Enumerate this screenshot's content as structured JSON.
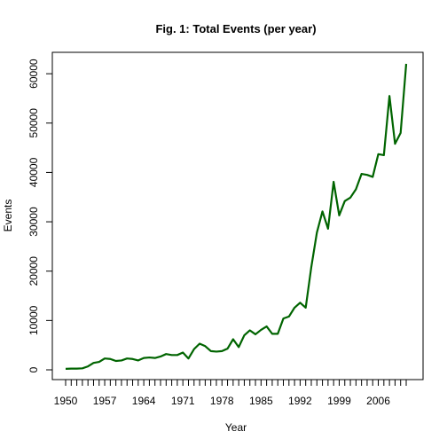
{
  "chart_data": {
    "type": "line",
    "title": "Fig. 1: Total Events (per year)",
    "xlabel": "Year",
    "ylabel": "Events",
    "xlim": [
      1950,
      2011
    ],
    "ylim": [
      0,
      62000
    ],
    "grid": false,
    "x_ticks": [
      1950,
      1951,
      1952,
      1953,
      1954,
      1955,
      1956,
      1957,
      1958,
      1959,
      1960,
      1961,
      1962,
      1963,
      1964,
      1965,
      1966,
      1967,
      1968,
      1969,
      1970,
      1971,
      1972,
      1973,
      1974,
      1975,
      1976,
      1977,
      1978,
      1979,
      1980,
      1981,
      1982,
      1983,
      1984,
      1985,
      1986,
      1987,
      1988,
      1989,
      1990,
      1991,
      1992,
      1993,
      1994,
      1995,
      1996,
      1997,
      1998,
      1999,
      2000,
      2001,
      2002,
      2003,
      2004,
      2005,
      2006,
      2007,
      2008,
      2009,
      2010,
      2011
    ],
    "x_tick_labels": [
      "1950",
      "1957",
      "1964",
      "1971",
      "1978",
      "1985",
      "1992",
      "1999",
      "2006"
    ],
    "x_tick_label_years": [
      1950,
      1957,
      1964,
      1971,
      1978,
      1985,
      1992,
      1999,
      2006
    ],
    "y_ticks": [
      0,
      10000,
      20000,
      30000,
      40000,
      50000,
      60000
    ],
    "y_tick_labels": [
      "0",
      "10000",
      "20000",
      "30000",
      "40000",
      "50000",
      "60000"
    ],
    "line_color": "#006400",
    "series": [
      {
        "x": [
          1950,
          1951,
          1952,
          1953,
          1954,
          1955,
          1956,
          1957,
          1958,
          1959,
          1960,
          1961,
          1962,
          1963,
          1964,
          1965,
          1966,
          1967,
          1968,
          1969,
          1970,
          1971,
          1972,
          1973,
          1974,
          1975,
          1976,
          1977,
          1978,
          1979,
          1980,
          1981,
          1982,
          1983,
          1984,
          1985,
          1986,
          1987,
          1988,
          1989,
          1990,
          1991,
          1992,
          1993,
          1994,
          1995,
          1996,
          1997,
          1998,
          1999,
          2000,
          2001,
          2002,
          2003,
          2004,
          2005,
          2006,
          2007,
          2008,
          2009,
          2010
        ],
        "values": [
          200,
          250,
          250,
          300,
          700,
          1400,
          1600,
          2300,
          2200,
          1800,
          1900,
          2300,
          2200,
          1900,
          2400,
          2500,
          2400,
          2700,
          3200,
          3000,
          3000,
          3500,
          2300,
          4200,
          5300,
          4800,
          3800,
          3700,
          3800,
          4300,
          6200,
          4600,
          7000,
          8000,
          7200,
          8100,
          8800,
          7300,
          7300,
          10400,
          10800,
          12600,
          13600,
          12600,
          20800,
          27800,
          32100,
          28600,
          38100,
          31300,
          34200,
          34900,
          36600,
          39700,
          39500,
          39100,
          43700,
          43500,
          55500,
          45800,
          48000
        ]
      }
    ],
    "last_point": [
      2011,
      62000
    ]
  }
}
